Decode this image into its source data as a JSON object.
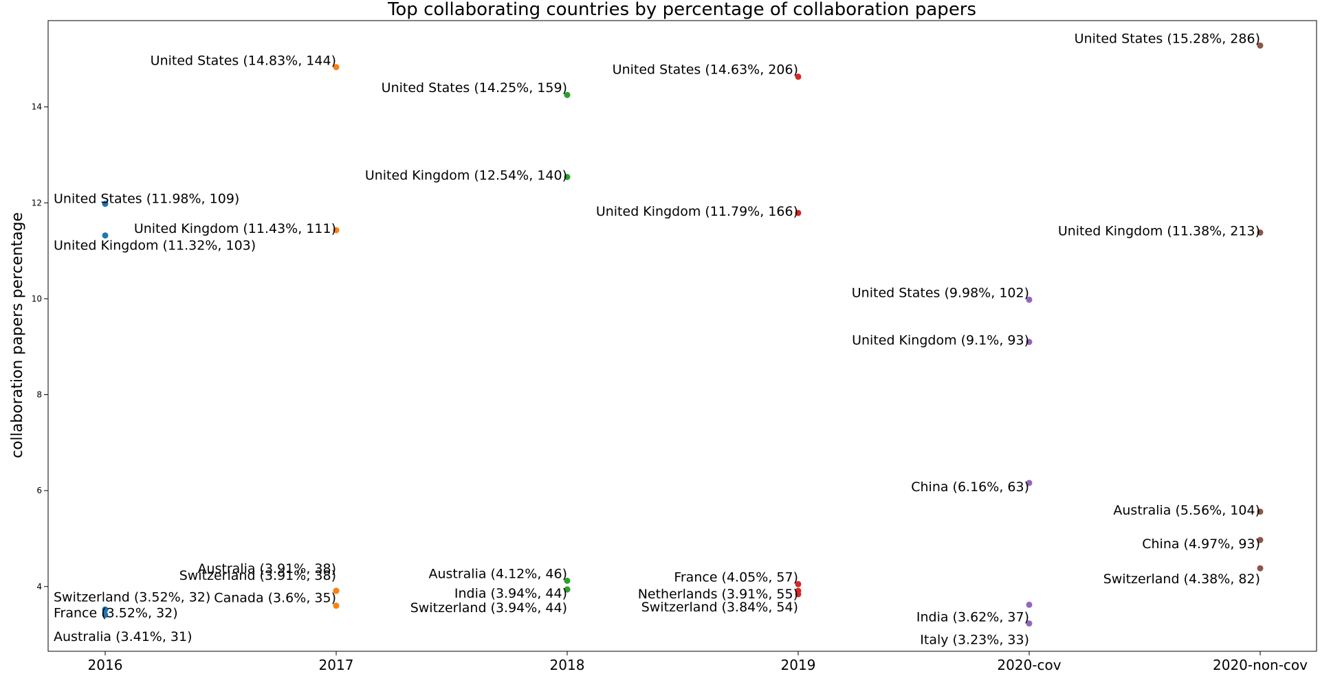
{
  "chart_data": {
    "type": "scatter",
    "title": "Top collaborating countries by percentage of collaboration papers",
    "xlabel": "",
    "ylabel": "collaboration papers percentage",
    "categories": [
      "2016",
      "2017",
      "2018",
      "2019",
      "2020-cov",
      "2020-non-cov"
    ],
    "yticks": [
      4,
      6,
      8,
      10,
      12,
      14
    ],
    "ylim": [
      2.65,
      15.8
    ],
    "grid": false,
    "colors": [
      "#1f77b4",
      "#ff7f0e",
      "#2ca02c",
      "#d62728",
      "#9467bd",
      "#8c564b"
    ],
    "series": [
      {
        "category": "2016",
        "points": [
          {
            "y": 11.98,
            "label": "United States (11.98%, 109)"
          },
          {
            "y": 11.32,
            "label": "United Kingdom (11.32%, 103)"
          },
          {
            "y": 3.52,
            "label": "Switzerland (3.52%, 32)"
          },
          {
            "y": 3.52,
            "label": "France (3.52%, 32)"
          },
          {
            "y": 3.41,
            "label": "Australia (3.41%, 31)"
          }
        ]
      },
      {
        "category": "2017",
        "points": [
          {
            "y": 14.83,
            "label": "United States (14.83%, 144)"
          },
          {
            "y": 11.43,
            "label": "United Kingdom (11.43%, 111)"
          },
          {
            "y": 3.91,
            "label": "Australia (3.91%, 38)"
          },
          {
            "y": 3.91,
            "label": "Switzerland (3.91%, 38)"
          },
          {
            "y": 3.6,
            "label": "Canada (3.6%, 35)"
          }
        ]
      },
      {
        "category": "2018",
        "points": [
          {
            "y": 14.25,
            "label": "United States (14.25%, 159)"
          },
          {
            "y": 12.54,
            "label": "United Kingdom (12.54%, 140)"
          },
          {
            "y": 4.12,
            "label": "Australia (4.12%, 46)"
          },
          {
            "y": 3.94,
            "label": "India (3.94%, 44)"
          },
          {
            "y": 3.94,
            "label": "Switzerland (3.94%, 44)"
          }
        ]
      },
      {
        "category": "2019",
        "points": [
          {
            "y": 14.63,
            "label": "United States (14.63%, 206)"
          },
          {
            "y": 11.79,
            "label": "United Kingdom (11.79%, 166)"
          },
          {
            "y": 4.05,
            "label": "France (4.05%, 57)"
          },
          {
            "y": 3.91,
            "label": "Netherlands (3.91%, 55)"
          },
          {
            "y": 3.84,
            "label": "Switzerland (3.84%, 54)"
          }
        ]
      },
      {
        "category": "2020-cov",
        "points": [
          {
            "y": 9.98,
            "label": "United States (9.98%, 102)"
          },
          {
            "y": 9.1,
            "label": "United Kingdom (9.1%, 93)"
          },
          {
            "y": 6.16,
            "label": "China (6.16%, 63)"
          },
          {
            "y": 3.62,
            "label": "India (3.62%, 37)"
          },
          {
            "y": 3.23,
            "label": "Italy (3.23%, 33)"
          }
        ]
      },
      {
        "category": "2020-non-cov",
        "points": [
          {
            "y": 15.28,
            "label": "United States (15.28%, 286)"
          },
          {
            "y": 11.38,
            "label": "United Kingdom (11.38%, 213)"
          },
          {
            "y": 5.56,
            "label": "Australia (5.56%, 104)"
          },
          {
            "y": 4.97,
            "label": "China (4.97%, 93)"
          },
          {
            "y": 4.38,
            "label": "Switzerland (4.38%, 82)"
          }
        ]
      }
    ]
  }
}
